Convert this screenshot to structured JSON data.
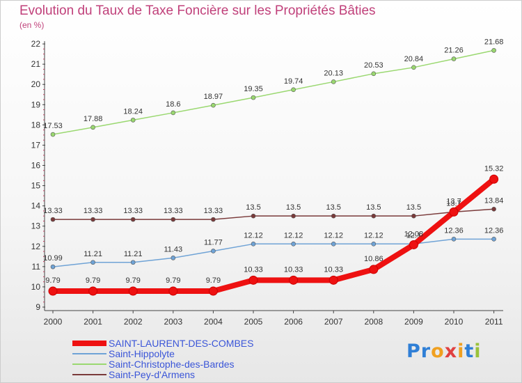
{
  "title": "Evolution du Taux de Taxe Foncière sur les Propriétés Bâties",
  "unit": "(en %)",
  "logo": {
    "text": "Proxiti",
    "colors": [
      "#2f7fd6",
      "#2f7fd6",
      "#f0a020",
      "#e04040",
      "#f0a020",
      "#2f7fd6",
      "#9ac23a"
    ]
  },
  "chart_data": {
    "type": "line",
    "x": [
      "2000",
      "2001",
      "2002",
      "2003",
      "2004",
      "2005",
      "2006",
      "2007",
      "2008",
      "2009",
      "2010",
      "2011"
    ],
    "ylim": [
      9,
      22
    ],
    "yticks": [
      9,
      10,
      11,
      12,
      13,
      14,
      15,
      16,
      17,
      18,
      19,
      20,
      21,
      22
    ],
    "grid": false,
    "legend_position": "bottom-left",
    "series": [
      {
        "name": "SAINT-LAURENT-DES-COMBES",
        "color": "#ee1111",
        "width": 8,
        "marker": 6,
        "values": [
          9.79,
          9.79,
          9.79,
          9.79,
          9.79,
          10.33,
          10.33,
          10.33,
          10.86,
          12.08,
          13.7,
          15.32
        ],
        "labels": [
          "9.79",
          "9.79",
          "9.79",
          "9.79",
          "9.79",
          "10.33",
          "10.33",
          "10.33",
          "10.86",
          "12.08",
          "13.7",
          "15.32"
        ]
      },
      {
        "name": "Saint-Hippolyte",
        "color": "#6fa3d6",
        "width": 1.5,
        "marker": 3,
        "values": [
          10.99,
          11.21,
          11.21,
          11.43,
          11.77,
          12.12,
          12.12,
          12.12,
          12.12,
          12.12,
          12.36,
          12.36
        ],
        "labels": [
          "10.99",
          "11.21",
          "11.21",
          "11.43",
          "11.77",
          "12.12",
          "12.12",
          "12.12",
          "12.12",
          "12.1",
          "12.36",
          "12.36"
        ]
      },
      {
        "name": "Saint-Christophe-des-Bardes",
        "color": "#9ad870",
        "width": 1.5,
        "marker": 3,
        "values": [
          17.53,
          17.88,
          18.24,
          18.6,
          18.97,
          19.35,
          19.74,
          20.13,
          20.53,
          20.84,
          21.26,
          21.68
        ],
        "labels": [
          "17.53",
          "17.88",
          "18.24",
          "18.6",
          "18.97",
          "19.35",
          "19.74",
          "20.13",
          "20.53",
          "20.84",
          "21.26",
          "21.68"
        ]
      },
      {
        "name": "Saint-Pey-d'Armens",
        "color": "#7a3a3a",
        "width": 1.5,
        "marker": 3,
        "values": [
          13.33,
          13.33,
          13.33,
          13.33,
          13.33,
          13.5,
          13.5,
          13.5,
          13.5,
          13.5,
          13.7,
          13.84
        ],
        "labels": [
          "13.33",
          "13.33",
          "13.33",
          "13.33",
          "13.33",
          "13.5",
          "13.5",
          "13.5",
          "13.5",
          "13.5",
          "13.7",
          "13.84"
        ]
      }
    ]
  }
}
